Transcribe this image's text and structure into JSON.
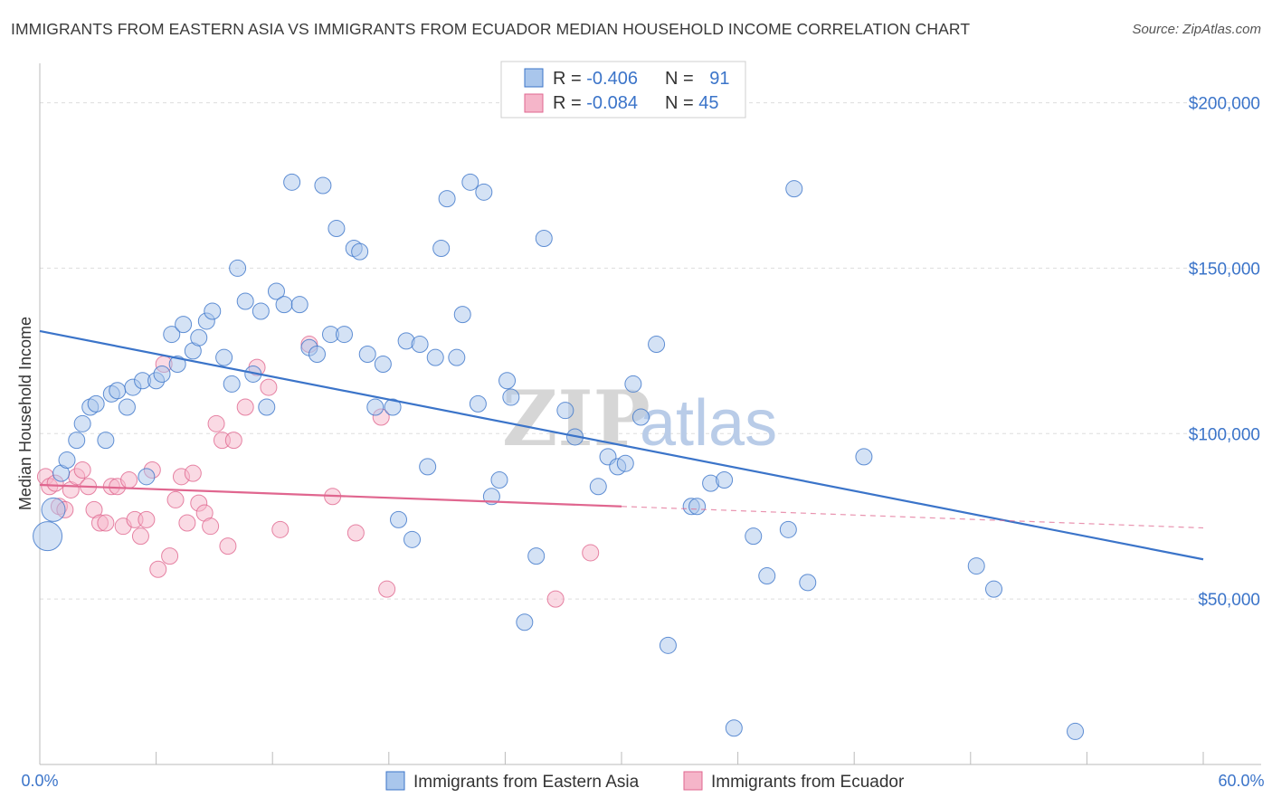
{
  "title": "IMMIGRANTS FROM EASTERN ASIA VS IMMIGRANTS FROM ECUADOR MEDIAN HOUSEHOLD INCOME CORRELATION CHART",
  "source": "Source: ZipAtlas.com",
  "watermark": {
    "zip": "ZIP",
    "atlas": "atlas"
  },
  "colors": {
    "blue": "#3b74c9",
    "blue_fill": "#a9c6ec",
    "pink": "#e0668f",
    "pink_fill": "#f5b5c9"
  },
  "legend": {
    "rows": [
      {
        "r_label": "R = ",
        "r_value": "-0.406",
        "n_label": "N = ",
        "n_value": "91"
      },
      {
        "r_label": "R = ",
        "r_value": "-0.084",
        "n_label": "N = ",
        "n_value": "45"
      }
    ]
  },
  "chart_data": {
    "type": "scatter",
    "xlabel": "",
    "ylabel": "Median Household Income",
    "xlim": [
      0,
      60
    ],
    "ylim": [
      0,
      210000
    ],
    "x_tick_labels": [
      "0.0%",
      "60.0%"
    ],
    "y_ticks": [
      50000,
      100000,
      150000,
      200000
    ],
    "y_tick_labels": [
      "$50,000",
      "$100,000",
      "$150,000",
      "$200,000"
    ],
    "grid": true,
    "series": [
      {
        "name": "Immigrants from Eastern Asia",
        "color": "#3b74c9",
        "trend": {
          "x": [
            0,
            60
          ],
          "y": [
            131000,
            62000
          ]
        },
        "points": [
          [
            0.4,
            69000,
            3
          ],
          [
            0.7,
            77000,
            2
          ],
          [
            1.1,
            88000,
            1
          ],
          [
            1.4,
            92000,
            1
          ],
          [
            1.9,
            98000,
            1
          ],
          [
            2.2,
            103000,
            1
          ],
          [
            2.6,
            108000,
            1
          ],
          [
            2.9,
            109000,
            1
          ],
          [
            3.4,
            98000,
            1
          ],
          [
            3.7,
            112000,
            1
          ],
          [
            4.0,
            113000,
            1
          ],
          [
            4.5,
            108000,
            1
          ],
          [
            4.8,
            114000,
            1
          ],
          [
            5.3,
            116000,
            1
          ],
          [
            5.5,
            87000,
            1
          ],
          [
            6.0,
            116000,
            1
          ],
          [
            6.3,
            118000,
            1
          ],
          [
            6.8,
            130000,
            1
          ],
          [
            7.1,
            121000,
            1
          ],
          [
            7.4,
            133000,
            1
          ],
          [
            7.9,
            125000,
            1
          ],
          [
            8.2,
            129000,
            1
          ],
          [
            8.6,
            134000,
            1
          ],
          [
            8.9,
            137000,
            1
          ],
          [
            9.5,
            123000,
            1
          ],
          [
            9.9,
            115000,
            1
          ],
          [
            10.2,
            150000,
            1
          ],
          [
            10.6,
            140000,
            1
          ],
          [
            11.0,
            118000,
            1
          ],
          [
            11.4,
            137000,
            1
          ],
          [
            11.7,
            108000,
            1
          ],
          [
            12.2,
            143000,
            1
          ],
          [
            12.6,
            139000,
            1
          ],
          [
            13.0,
            176000,
            1
          ],
          [
            13.4,
            139000,
            1
          ],
          [
            13.9,
            126000,
            1
          ],
          [
            14.3,
            124000,
            1
          ],
          [
            14.6,
            175000,
            1
          ],
          [
            15.0,
            130000,
            1
          ],
          [
            15.3,
            162000,
            1
          ],
          [
            15.7,
            130000,
            1
          ],
          [
            16.2,
            156000,
            1
          ],
          [
            16.5,
            155000,
            1
          ],
          [
            16.9,
            124000,
            1
          ],
          [
            17.3,
            108000,
            1
          ],
          [
            17.7,
            121000,
            1
          ],
          [
            18.2,
            108000,
            1
          ],
          [
            18.5,
            74000,
            1
          ],
          [
            18.9,
            128000,
            1
          ],
          [
            19.2,
            68000,
            1
          ],
          [
            19.6,
            127000,
            1
          ],
          [
            20.0,
            90000,
            1
          ],
          [
            20.4,
            123000,
            1
          ],
          [
            20.7,
            156000,
            1
          ],
          [
            21.0,
            171000,
            1
          ],
          [
            21.5,
            123000,
            1
          ],
          [
            21.8,
            136000,
            1
          ],
          [
            22.2,
            176000,
            1
          ],
          [
            22.6,
            109000,
            1
          ],
          [
            22.9,
            173000,
            1
          ],
          [
            23.3,
            81000,
            1
          ],
          [
            23.7,
            86000,
            1
          ],
          [
            24.1,
            116000,
            1
          ],
          [
            24.3,
            111000,
            1
          ],
          [
            25.0,
            43000,
            1
          ],
          [
            25.6,
            63000,
            1
          ],
          [
            26.0,
            159000,
            1
          ],
          [
            27.1,
            107000,
            1
          ],
          [
            27.6,
            99000,
            1
          ],
          [
            28.8,
            84000,
            1
          ],
          [
            29.3,
            93000,
            1
          ],
          [
            29.8,
            90000,
            1
          ],
          [
            30.2,
            91000,
            1
          ],
          [
            30.6,
            115000,
            1
          ],
          [
            31.0,
            105000,
            1
          ],
          [
            31.8,
            127000,
            1
          ],
          [
            32.4,
            36000,
            1
          ],
          [
            33.6,
            78000,
            1
          ],
          [
            33.9,
            78000,
            1
          ],
          [
            34.6,
            85000,
            1
          ],
          [
            35.3,
            86000,
            1
          ],
          [
            35.8,
            11000,
            1
          ],
          [
            36.8,
            69000,
            1
          ],
          [
            37.5,
            57000,
            1
          ],
          [
            38.6,
            71000,
            1
          ],
          [
            38.9,
            174000,
            1
          ],
          [
            39.6,
            55000,
            1
          ],
          [
            42.5,
            93000,
            1
          ],
          [
            48.3,
            60000,
            1
          ],
          [
            49.2,
            53000,
            1
          ],
          [
            53.4,
            10000,
            1
          ]
        ]
      },
      {
        "name": "Immigrants from Ecuador",
        "color": "#e0668f",
        "trend": {
          "x": [
            0,
            30
          ],
          "y": [
            84500,
            78000
          ]
        },
        "trend_dashed": {
          "x": [
            30,
            60
          ],
          "y": [
            78000,
            71500
          ]
        },
        "points": [
          [
            0.3,
            87000,
            1
          ],
          [
            0.5,
            84000,
            1
          ],
          [
            0.8,
            85000,
            1
          ],
          [
            1.0,
            78000,
            1
          ],
          [
            1.3,
            77000,
            1
          ],
          [
            1.6,
            83000,
            1
          ],
          [
            1.9,
            87000,
            1
          ],
          [
            2.2,
            89000,
            1
          ],
          [
            2.5,
            84000,
            1
          ],
          [
            2.8,
            77000,
            1
          ],
          [
            3.1,
            73000,
            1
          ],
          [
            3.4,
            73000,
            1
          ],
          [
            3.7,
            84000,
            1
          ],
          [
            4.0,
            84000,
            1
          ],
          [
            4.3,
            72000,
            1
          ],
          [
            4.6,
            86000,
            1
          ],
          [
            4.9,
            74000,
            1
          ],
          [
            5.2,
            69000,
            1
          ],
          [
            5.5,
            74000,
            1
          ],
          [
            5.8,
            89000,
            1
          ],
          [
            6.1,
            59000,
            1
          ],
          [
            6.4,
            121000,
            1
          ],
          [
            6.7,
            63000,
            1
          ],
          [
            7.0,
            80000,
            1
          ],
          [
            7.3,
            87000,
            1
          ],
          [
            7.6,
            73000,
            1
          ],
          [
            7.9,
            88000,
            1
          ],
          [
            8.2,
            79000,
            1
          ],
          [
            8.5,
            76000,
            1
          ],
          [
            8.8,
            72000,
            1
          ],
          [
            9.1,
            103000,
            1
          ],
          [
            9.4,
            98000,
            1
          ],
          [
            9.7,
            66000,
            1
          ],
          [
            10.0,
            98000,
            1
          ],
          [
            10.6,
            108000,
            1
          ],
          [
            11.2,
            120000,
            1
          ],
          [
            11.8,
            114000,
            1
          ],
          [
            12.4,
            71000,
            1
          ],
          [
            13.9,
            127000,
            1
          ],
          [
            15.1,
            81000,
            1
          ],
          [
            16.3,
            70000,
            1
          ],
          [
            17.6,
            105000,
            1
          ],
          [
            17.9,
            53000,
            1
          ],
          [
            26.6,
            50000,
            1
          ],
          [
            28.4,
            64000,
            1
          ]
        ]
      }
    ]
  }
}
